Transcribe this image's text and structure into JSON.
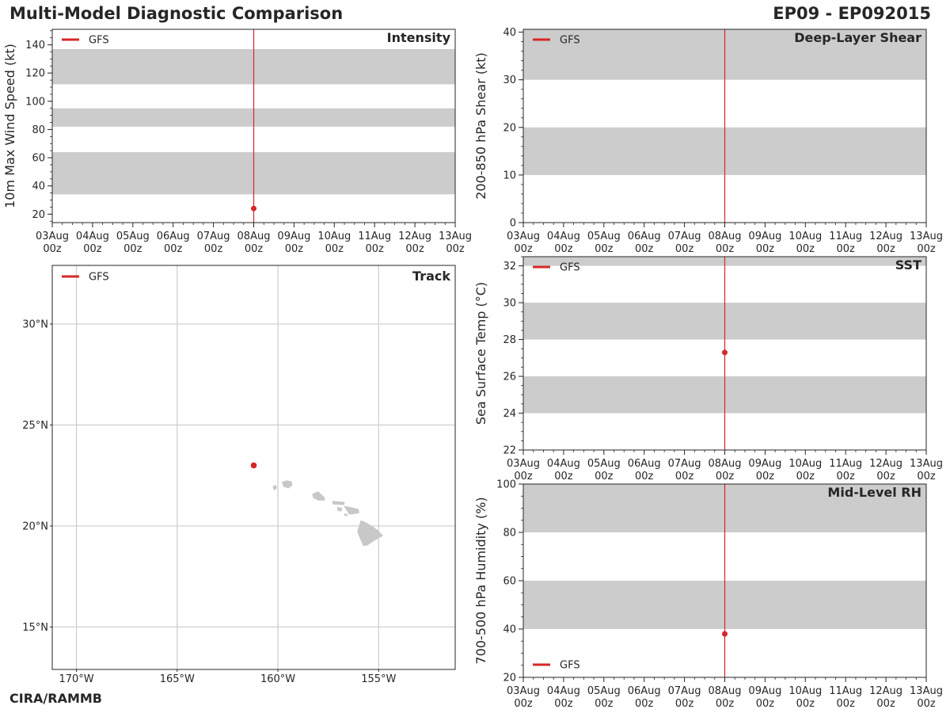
{
  "header": {
    "title": "Multi-Model Diagnostic Comparison",
    "storm_id": "EP09 - EP092015",
    "credit": "CIRA/RAMMB"
  },
  "colors": {
    "series": "#d62728",
    "band": "#cccccc",
    "grid": "#cccccc",
    "land": "#c8c8c8",
    "axis": "#262626"
  },
  "time_axis": {
    "start_day": 3,
    "end_day": 13,
    "ticks": [
      "03Aug\n00z",
      "04Aug\n00z",
      "05Aug\n00z",
      "06Aug\n00z",
      "07Aug\n00z",
      "08Aug\n00z",
      "09Aug\n00z",
      "10Aug\n00z",
      "11Aug\n00z",
      "12Aug\n00z",
      "13Aug\n00z"
    ],
    "current_day": 8
  },
  "chart_data": [
    {
      "id": "intensity",
      "type": "scatter",
      "title": "Intensity",
      "xlabel": "",
      "ylabel": "10m Max Wind Speed (kt)",
      "ylim": [
        14,
        151
      ],
      "yticks": [
        20,
        40,
        60,
        80,
        100,
        120,
        140
      ],
      "yminor": 5,
      "bands": [
        [
          34,
          64
        ],
        [
          82,
          95
        ],
        [
          112,
          137
        ]
      ],
      "legend": "top-left",
      "series": [
        {
          "name": "GFS",
          "points": [
            {
              "x": 8,
              "y": 24
            }
          ]
        }
      ]
    },
    {
      "id": "shear",
      "type": "scatter",
      "title": "Deep-Layer Shear",
      "xlabel": "",
      "ylabel": "200-850 hPa Shear (kt)",
      "ylim": [
        0,
        40.6
      ],
      "yticks": [
        0,
        10,
        20,
        30,
        40
      ],
      "yminor": 2,
      "bands": [
        [
          10,
          20
        ],
        [
          30,
          40.6
        ]
      ],
      "legend": "top-left",
      "series": [
        {
          "name": "GFS",
          "points": []
        }
      ]
    },
    {
      "id": "sst",
      "type": "scatter",
      "title": "SST",
      "xlabel": "",
      "ylabel": "Sea Surface Temp (°C)",
      "ylim": [
        22,
        32.5
      ],
      "yticks": [
        22,
        24,
        26,
        28,
        30,
        32
      ],
      "yminor": 0.5,
      "bands": [
        [
          24,
          26
        ],
        [
          28,
          30
        ],
        [
          32,
          32.5
        ]
      ],
      "legend": "top-left",
      "series": [
        {
          "name": "GFS",
          "points": [
            {
              "x": 8,
              "y": 27.3
            }
          ]
        }
      ]
    },
    {
      "id": "rh",
      "type": "scatter",
      "title": "Mid-Level RH",
      "xlabel": "",
      "ylabel": "700-500 hPa Humidity (%)",
      "ylim": [
        20,
        100
      ],
      "yticks": [
        20,
        40,
        60,
        80,
        100
      ],
      "yminor": 5,
      "bands": [
        [
          40,
          60
        ],
        [
          80,
          100
        ]
      ],
      "legend": "bottom-left",
      "series": [
        {
          "name": "GFS",
          "points": [
            {
              "x": 8,
              "y": 38
            }
          ]
        }
      ]
    },
    {
      "id": "track",
      "type": "map",
      "title": "Track",
      "lon_range": [
        -171.2,
        -151.2
      ],
      "lat_range": [
        12.9,
        32.9
      ],
      "xticks": [
        -170,
        -165,
        -160,
        -155
      ],
      "xtick_labels": [
        "170°W",
        "165°W",
        "160°W",
        "155°W"
      ],
      "yticks": [
        15,
        20,
        25,
        30
      ],
      "ytick_labels": [
        "15°N",
        "20°N",
        "25°N",
        "30°N"
      ],
      "legend": "top-left",
      "series": [
        {
          "name": "GFS",
          "points": [
            {
              "lon": -161.2,
              "lat": 23.0
            }
          ]
        }
      ]
    }
  ]
}
